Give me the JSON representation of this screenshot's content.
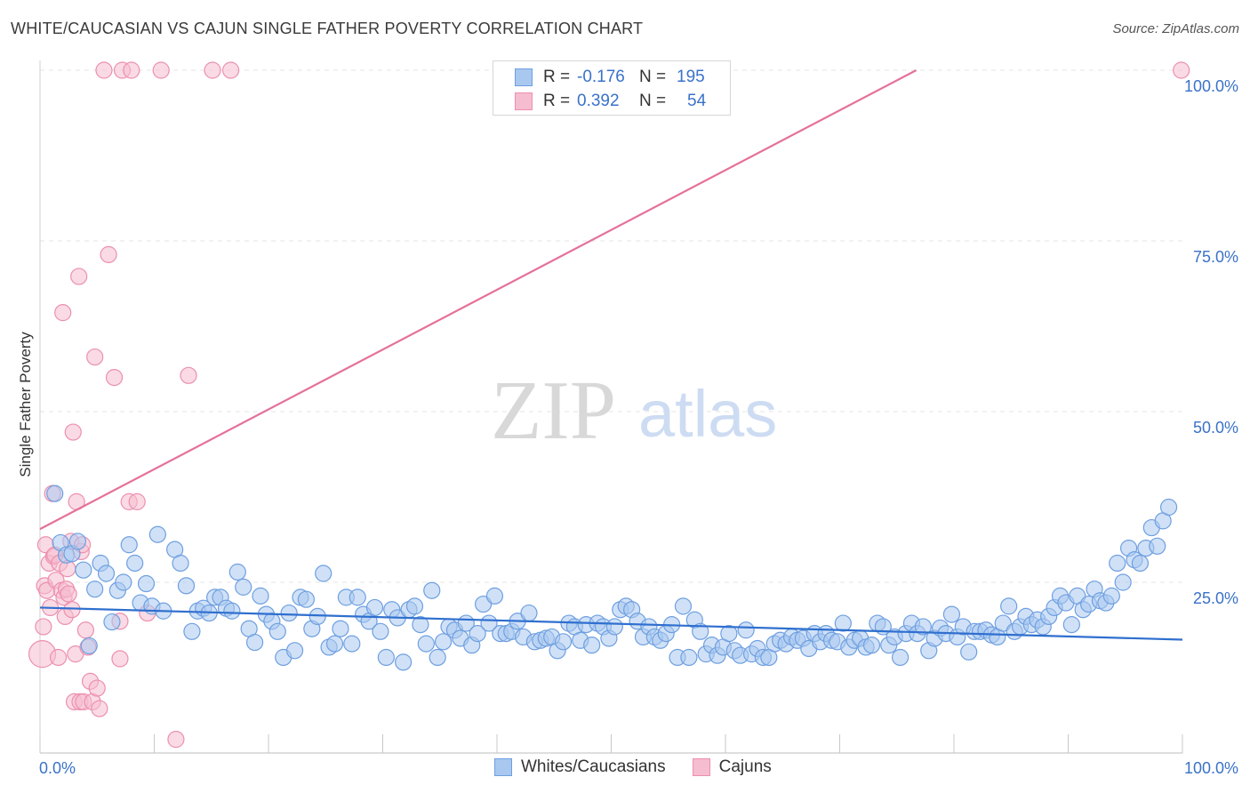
{
  "title": "WHITE/CAUCASIAN VS CAJUN SINGLE FATHER POVERTY CORRELATION CHART",
  "source": "Source: ZipAtlas.com",
  "watermark": {
    "part1": "ZIP",
    "part2": "atlas"
  },
  "stats": [
    {
      "r_label": "R =",
      "r_value": "-0.176",
      "n_label": "N =",
      "n_value": "195"
    },
    {
      "r_label": "R =",
      "r_value": "0.392",
      "n_label": "N =",
      "n_value": "54"
    }
  ],
  "legend": {
    "white": "Whites/Caucasians",
    "cajun": "Cajuns"
  },
  "colors": {
    "white_fill": "#a9c8f0",
    "white_stroke": "#6e9fe0",
    "white_line": "#2f6fcf",
    "cajun_fill": "#f6bdd0",
    "cajun_stroke": "#ec8fae",
    "cajun_line": "#e5719b",
    "tick_label": "#3a72c9",
    "grid": "#e4e4e4"
  },
  "chart_data": {
    "type": "scatter",
    "title": "WHITE/CAUCASIAN VS CAJUN SINGLE FATHER POVERTY CORRELATION CHART",
    "xlabel": "",
    "ylabel": "Single Father Poverty",
    "xlim": [
      0,
      100
    ],
    "ylim": [
      0,
      100
    ],
    "x_tick_labels": [
      "0.0%",
      "100.0%"
    ],
    "y_ticks": [
      25,
      50,
      75,
      100
    ],
    "y_tick_labels": [
      "25.0%",
      "50.0%",
      "75.0%",
      "100.0%"
    ],
    "grid": true,
    "series": [
      {
        "name": "Whites/Caucasians",
        "r": -0.176,
        "n": 195,
        "trend": {
          "x": [
            0,
            100
          ],
          "y": [
            21.3,
            16.6
          ]
        },
        "points": [
          [
            1.3,
            38.0
          ],
          [
            1.8,
            30.8
          ],
          [
            2.3,
            29.0
          ],
          [
            2.8,
            29.2
          ],
          [
            3.3,
            31.0
          ],
          [
            3.8,
            26.8
          ],
          [
            4.3,
            15.7
          ],
          [
            4.8,
            24.0
          ],
          [
            5.3,
            27.8
          ],
          [
            5.8,
            26.3
          ],
          [
            6.3,
            19.2
          ],
          [
            6.8,
            23.8
          ],
          [
            7.3,
            25.0
          ],
          [
            7.8,
            30.5
          ],
          [
            8.3,
            27.8
          ],
          [
            8.8,
            22.0
          ],
          [
            9.3,
            24.8
          ],
          [
            9.8,
            21.5
          ],
          [
            10.3,
            32.0
          ],
          [
            10.8,
            20.8
          ],
          [
            11.8,
            29.8
          ],
          [
            12.3,
            27.8
          ],
          [
            12.8,
            24.5
          ],
          [
            13.3,
            17.8
          ],
          [
            13.8,
            20.8
          ],
          [
            14.3,
            21.2
          ],
          [
            14.8,
            20.5
          ],
          [
            15.3,
            22.8
          ],
          [
            15.8,
            22.8
          ],
          [
            16.3,
            21.2
          ],
          [
            16.8,
            20.8
          ],
          [
            17.3,
            26.5
          ],
          [
            17.8,
            24.3
          ],
          [
            18.3,
            18.2
          ],
          [
            18.8,
            16.2
          ],
          [
            19.3,
            23.0
          ],
          [
            19.8,
            20.3
          ],
          [
            20.3,
            19.3
          ],
          [
            20.8,
            17.8
          ],
          [
            21.3,
            14.0
          ],
          [
            21.8,
            20.5
          ],
          [
            22.3,
            15.0
          ],
          [
            22.8,
            22.8
          ],
          [
            23.3,
            22.5
          ],
          [
            23.8,
            18.2
          ],
          [
            24.3,
            20.0
          ],
          [
            24.8,
            26.3
          ],
          [
            25.3,
            15.5
          ],
          [
            25.8,
            16.0
          ],
          [
            26.3,
            18.2
          ],
          [
            26.8,
            22.8
          ],
          [
            27.3,
            16.0
          ],
          [
            27.8,
            22.8
          ],
          [
            28.3,
            20.3
          ],
          [
            28.8,
            19.3
          ],
          [
            29.3,
            21.3
          ],
          [
            29.8,
            17.8
          ],
          [
            30.3,
            14.0
          ],
          [
            30.8,
            21.0
          ],
          [
            31.3,
            19.8
          ],
          [
            31.8,
            13.3
          ],
          [
            32.3,
            21.0
          ],
          [
            32.8,
            21.5
          ],
          [
            33.3,
            18.8
          ],
          [
            33.8,
            16.0
          ],
          [
            34.3,
            23.8
          ],
          [
            34.8,
            14.0
          ],
          [
            35.3,
            16.3
          ],
          [
            35.8,
            18.5
          ],
          [
            36.3,
            18.0
          ],
          [
            36.8,
            16.8
          ],
          [
            37.3,
            19.0
          ],
          [
            37.8,
            15.8
          ],
          [
            38.3,
            17.5
          ],
          [
            38.8,
            21.8
          ],
          [
            39.3,
            19.0
          ],
          [
            39.8,
            23.0
          ],
          [
            40.3,
            17.5
          ],
          [
            40.8,
            17.5
          ],
          [
            41.3,
            17.8
          ],
          [
            41.8,
            19.3
          ],
          [
            42.3,
            17.0
          ],
          [
            42.8,
            20.5
          ],
          [
            43.3,
            16.3
          ],
          [
            43.8,
            16.5
          ],
          [
            44.3,
            16.8
          ],
          [
            44.8,
            17.0
          ],
          [
            45.3,
            15.0
          ],
          [
            45.8,
            16.3
          ],
          [
            46.3,
            19.0
          ],
          [
            46.8,
            18.5
          ],
          [
            47.3,
            16.5
          ],
          [
            47.8,
            18.8
          ],
          [
            48.3,
            15.8
          ],
          [
            48.8,
            19.0
          ],
          [
            49.3,
            18.5
          ],
          [
            49.8,
            16.8
          ],
          [
            50.3,
            18.5
          ],
          [
            50.8,
            21.0
          ],
          [
            51.3,
            21.5
          ],
          [
            51.8,
            21.0
          ],
          [
            52.3,
            19.3
          ],
          [
            52.8,
            17.0
          ],
          [
            53.3,
            18.5
          ],
          [
            53.8,
            17.0
          ],
          [
            54.3,
            16.5
          ],
          [
            54.8,
            17.5
          ],
          [
            55.3,
            18.8
          ],
          [
            55.8,
            14.0
          ],
          [
            56.3,
            21.5
          ],
          [
            56.8,
            14.0
          ],
          [
            57.3,
            19.5
          ],
          [
            57.8,
            17.8
          ],
          [
            58.3,
            14.5
          ],
          [
            58.8,
            15.8
          ],
          [
            59.3,
            14.3
          ],
          [
            59.8,
            15.5
          ],
          [
            60.3,
            17.5
          ],
          [
            60.8,
            15.0
          ],
          [
            61.3,
            14.3
          ],
          [
            61.8,
            18.0
          ],
          [
            62.3,
            14.5
          ],
          [
            62.8,
            15.3
          ],
          [
            63.3,
            14.0
          ],
          [
            63.8,
            14.0
          ],
          [
            64.3,
            16.0
          ],
          [
            64.8,
            16.5
          ],
          [
            65.3,
            16.0
          ],
          [
            65.8,
            17.0
          ],
          [
            66.3,
            16.5
          ],
          [
            66.8,
            16.8
          ],
          [
            67.3,
            15.3
          ],
          [
            67.8,
            17.5
          ],
          [
            68.3,
            16.3
          ],
          [
            68.8,
            17.5
          ],
          [
            69.3,
            16.5
          ],
          [
            69.8,
            16.3
          ],
          [
            70.3,
            19.0
          ],
          [
            70.8,
            15.5
          ],
          [
            71.3,
            16.5
          ],
          [
            71.8,
            16.8
          ],
          [
            72.3,
            15.5
          ],
          [
            72.8,
            15.8
          ],
          [
            73.3,
            19.0
          ],
          [
            73.8,
            18.5
          ],
          [
            74.3,
            15.8
          ],
          [
            74.8,
            17.0
          ],
          [
            75.3,
            14.0
          ],
          [
            75.8,
            17.5
          ],
          [
            76.3,
            19.0
          ],
          [
            76.8,
            17.5
          ],
          [
            77.3,
            18.5
          ],
          [
            77.8,
            15.0
          ],
          [
            78.3,
            16.8
          ],
          [
            78.8,
            18.3
          ],
          [
            79.3,
            17.5
          ],
          [
            79.8,
            20.3
          ],
          [
            80.3,
            17.0
          ],
          [
            80.8,
            18.5
          ],
          [
            81.3,
            14.8
          ],
          [
            81.8,
            17.8
          ],
          [
            82.3,
            17.8
          ],
          [
            82.8,
            18.0
          ],
          [
            83.3,
            17.3
          ],
          [
            83.8,
            17.0
          ],
          [
            84.3,
            19.0
          ],
          [
            84.8,
            21.5
          ],
          [
            85.3,
            17.8
          ],
          [
            85.8,
            18.5
          ],
          [
            86.3,
            20.0
          ],
          [
            86.8,
            18.8
          ],
          [
            87.3,
            19.5
          ],
          [
            87.8,
            18.5
          ],
          [
            88.3,
            20.0
          ],
          [
            88.8,
            21.3
          ],
          [
            89.3,
            23.0
          ],
          [
            89.8,
            22.0
          ],
          [
            90.3,
            18.8
          ],
          [
            90.8,
            23.0
          ],
          [
            91.3,
            21.0
          ],
          [
            91.8,
            21.8
          ],
          [
            92.3,
            24.0
          ],
          [
            92.8,
            22.3
          ],
          [
            93.3,
            22.0
          ],
          [
            93.8,
            23.0
          ],
          [
            94.3,
            27.8
          ],
          [
            94.8,
            25.0
          ],
          [
            95.3,
            30.0
          ],
          [
            95.8,
            28.3
          ],
          [
            96.3,
            27.8
          ],
          [
            96.8,
            30.0
          ],
          [
            97.3,
            33.0
          ],
          [
            97.8,
            30.3
          ],
          [
            98.3,
            34.0
          ],
          [
            98.8,
            36.0
          ]
        ]
      },
      {
        "name": "Cajuns",
        "r": 0.392,
        "n": 54,
        "trend": {
          "x": [
            0,
            76.7
          ],
          "y": [
            32.8,
            100
          ]
        },
        "points": [
          [
            0.2,
            14.5
          ],
          [
            0.3,
            18.5
          ],
          [
            0.4,
            24.5
          ],
          [
            0.5,
            30.5
          ],
          [
            0.6,
            23.8
          ],
          [
            0.8,
            27.8
          ],
          [
            0.9,
            21.3
          ],
          [
            1.1,
            38.0
          ],
          [
            1.2,
            28.8
          ],
          [
            1.3,
            29.0
          ],
          [
            1.4,
            25.3
          ],
          [
            1.6,
            14.0
          ],
          [
            1.7,
            27.8
          ],
          [
            1.9,
            23.8
          ],
          [
            2.0,
            64.5
          ],
          [
            2.1,
            22.8
          ],
          [
            2.2,
            20.0
          ],
          [
            2.3,
            24.0
          ],
          [
            2.4,
            27.0
          ],
          [
            2.5,
            23.3
          ],
          [
            2.7,
            31.0
          ],
          [
            2.8,
            21.0
          ],
          [
            2.9,
            47.0
          ],
          [
            3.0,
            7.5
          ],
          [
            3.1,
            14.5
          ],
          [
            3.2,
            36.8
          ],
          [
            3.4,
            69.8
          ],
          [
            3.5,
            7.5
          ],
          [
            3.6,
            29.5
          ],
          [
            3.7,
            30.5
          ],
          [
            3.8,
            7.5
          ],
          [
            4.0,
            18.0
          ],
          [
            4.2,
            15.5
          ],
          [
            4.4,
            10.5
          ],
          [
            4.6,
            7.5
          ],
          [
            4.8,
            58.0
          ],
          [
            5.0,
            9.5
          ],
          [
            5.2,
            6.5
          ],
          [
            5.6,
            100
          ],
          [
            6.0,
            73.0
          ],
          [
            6.5,
            55.0
          ],
          [
            7.0,
            13.8
          ],
          [
            7.0,
            19.3
          ],
          [
            7.8,
            36.8
          ],
          [
            8.5,
            36.8
          ],
          [
            9.4,
            20.5
          ],
          [
            11.9,
            2.0
          ],
          [
            13.0,
            55.3
          ],
          [
            7.2,
            100
          ],
          [
            8.0,
            100
          ],
          [
            10.6,
            100
          ],
          [
            15.1,
            100
          ],
          [
            16.7,
            100
          ],
          [
            99.9,
            100
          ]
        ]
      }
    ]
  }
}
